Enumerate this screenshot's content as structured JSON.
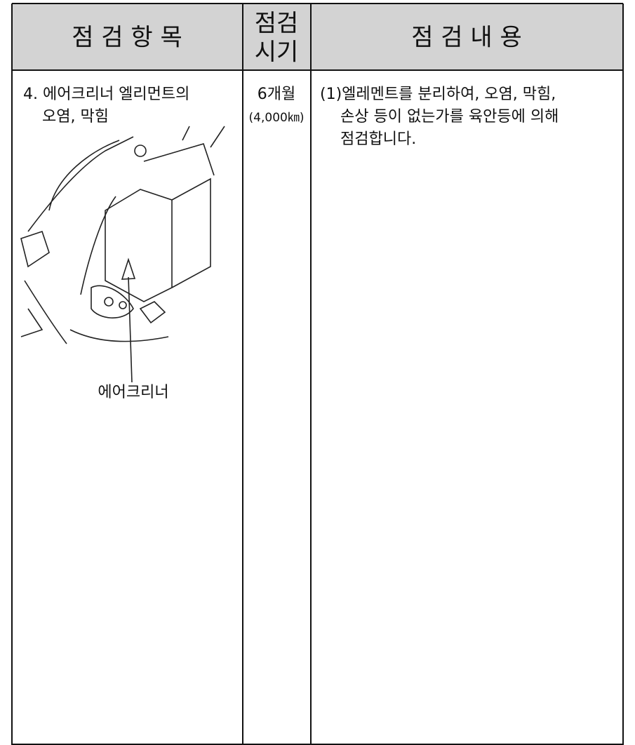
{
  "header": {
    "item": "점 검 항 목",
    "period": [
      "점검",
      "시기"
    ],
    "content": "점 검 내 용"
  },
  "row": {
    "item": [
      "4. 에어크리너 엘리먼트의",
      "오염, 막힘"
    ],
    "figure_label": "에어크리너",
    "period": [
      "6개월",
      "(4,000㎞)"
    ],
    "content": [
      "(1)엘레멘트를 분리하여, 오염, 막힘,",
      "손상 등이 없는가를 육안등에 의해",
      "점검합니다."
    ]
  }
}
